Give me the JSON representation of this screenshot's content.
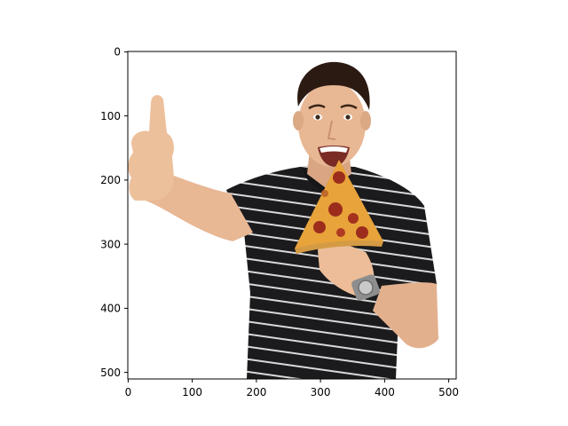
{
  "figure": {
    "background": "#ffffff",
    "axes": {
      "x_ticks": [
        "0",
        "100",
        "200",
        "300",
        "400",
        "500"
      ],
      "y_ticks": [
        "0",
        "100",
        "200",
        "300",
        "400",
        "500"
      ],
      "x_range": [
        0,
        512
      ],
      "y_range": [
        512,
        0
      ],
      "y_inverted": true,
      "grid": false
    },
    "image": {
      "content": "smiling man in a black striped polo holding a pepperoni pizza slice and giving a thumbs up, white background",
      "colors": {
        "shirt": "#1b1b1d",
        "stripes": "#d9d9d9",
        "skin": "#e8b794",
        "hair": "#2b1a12",
        "crust": "#d49a44",
        "cheese": "#e8a33a",
        "pepperoni": "#9c2d1c",
        "watch": "#9a9a9a"
      }
    }
  }
}
